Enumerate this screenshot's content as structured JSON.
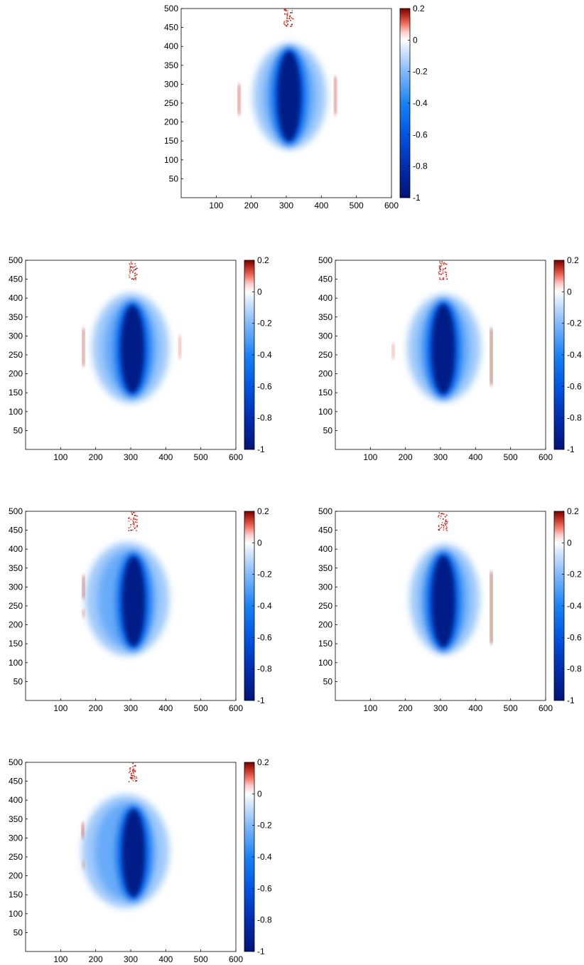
{
  "chart_data": [
    {
      "type": "heatmap",
      "panel": "top-center",
      "title": "",
      "xlabel": "",
      "ylabel": "",
      "xlim": [
        0,
        600
      ],
      "ylim": [
        0,
        500
      ],
      "x_ticks": [
        100,
        200,
        300,
        400,
        500,
        600
      ],
      "y_ticks": [
        50,
        100,
        150,
        200,
        250,
        300,
        350,
        400,
        450,
        500
      ],
      "colorbar": {
        "range": [
          -1,
          0.2
        ],
        "ticks": [
          0.2,
          0,
          -0.2,
          -0.4,
          -0.6,
          -0.8,
          -1
        ],
        "tick_labels": [
          "0.2",
          "0",
          "-0.2",
          "-0.4",
          "-0.6",
          "-0.8",
          "-1"
        ],
        "colormap": "blue-white-red"
      },
      "features": {
        "diffuse_region": {
          "x_center": 310,
          "y_center": 268,
          "x_halfwidth": 105,
          "y_halfwidth": 140,
          "value": -0.15
        },
        "core_region": {
          "x_center": 308,
          "y_center": 268,
          "x_halfwidth": 33,
          "y_halfwidth": 118,
          "value": -1
        },
        "positive_streaks": [
          {
            "x": 165,
            "y_from": 220,
            "y_to": 300,
            "value": 0.15
          },
          {
            "x": 440,
            "y_from": 220,
            "y_to": 320,
            "value": 0.15
          }
        ],
        "positive_cluster": {
          "x": 305,
          "y_from": 450,
          "y_to": 500,
          "value": 0.2
        }
      }
    },
    {
      "type": "heatmap",
      "panel": "row2-left",
      "title": "",
      "xlabel": "",
      "ylabel": "",
      "xlim": [
        0,
        600
      ],
      "ylim": [
        0,
        500
      ],
      "x_ticks": [
        100,
        200,
        300,
        400,
        500,
        600
      ],
      "y_ticks": [
        50,
        100,
        150,
        200,
        250,
        300,
        350,
        400,
        450,
        500
      ],
      "colorbar": {
        "range": [
          -1,
          0.2
        ],
        "ticks": [
          0.2,
          0,
          -0.2,
          -0.4,
          -0.6,
          -0.8,
          -1
        ],
        "tick_labels": [
          "0.2",
          "0",
          "-0.2",
          "-0.4",
          "-0.6",
          "-0.8",
          "-1"
        ],
        "colormap": "blue-white-red"
      },
      "features": {
        "diffuse_region": {
          "x_center": 300,
          "y_center": 268,
          "x_halfwidth": 110,
          "y_halfwidth": 145,
          "value": -0.15
        },
        "core_region": {
          "x_center": 305,
          "y_center": 265,
          "x_halfwidth": 33,
          "y_halfwidth": 115,
          "value": -1
        },
        "positive_streaks": [
          {
            "x": 165,
            "y_from": 220,
            "y_to": 320,
            "value": 0.15
          },
          {
            "x": 440,
            "y_from": 240,
            "y_to": 300,
            "value": 0.1
          }
        ],
        "positive_cluster": {
          "x": 305,
          "y_from": 450,
          "y_to": 500,
          "value": 0.2
        }
      }
    },
    {
      "type": "heatmap",
      "panel": "row2-right",
      "title": "",
      "xlabel": "",
      "ylabel": "",
      "xlim": [
        0,
        600
      ],
      "ylim": [
        0,
        500
      ],
      "x_ticks": [
        100,
        200,
        300,
        400,
        500,
        600
      ],
      "y_ticks": [
        50,
        100,
        150,
        200,
        250,
        300,
        350,
        400,
        450,
        500
      ],
      "colorbar": {
        "range": [
          -1,
          0.2
        ],
        "ticks": [
          0.2,
          0,
          -0.2,
          -0.4,
          -0.6,
          -0.8,
          -1
        ],
        "tick_labels": [
          "0.2",
          "0",
          "-0.2",
          "-0.4",
          "-0.6",
          "-0.8",
          "-1"
        ],
        "colormap": "blue-white-red"
      },
      "features": {
        "diffuse_region": {
          "x_center": 310,
          "y_center": 268,
          "x_halfwidth": 105,
          "y_halfwidth": 142,
          "value": -0.15
        },
        "core_region": {
          "x_center": 308,
          "y_center": 265,
          "x_halfwidth": 33,
          "y_halfwidth": 118,
          "value": -1
        },
        "positive_streaks": [
          {
            "x": 165,
            "y_from": 240,
            "y_to": 280,
            "value": 0.1
          },
          {
            "x": 445,
            "y_from": 170,
            "y_to": 320,
            "value": 0.18
          }
        ],
        "positive_cluster": {
          "x": 305,
          "y_from": 450,
          "y_to": 500,
          "value": 0.2
        }
      }
    },
    {
      "type": "heatmap",
      "panel": "row3-left",
      "title": "",
      "xlabel": "",
      "ylabel": "",
      "xlim": [
        0,
        600
      ],
      "ylim": [
        0,
        500
      ],
      "x_ticks": [
        100,
        200,
        300,
        400,
        500,
        600
      ],
      "y_ticks": [
        50,
        100,
        150,
        200,
        250,
        300,
        350,
        400,
        450,
        500
      ],
      "colorbar": {
        "range": [
          -1,
          0.2
        ],
        "ticks": [
          0.2,
          0,
          -0.2,
          -0.4,
          -0.6,
          -0.8,
          -1
        ],
        "tick_labels": [
          "0.2",
          "0",
          "-0.2",
          "-0.4",
          "-0.6",
          "-0.8",
          "-1"
        ],
        "colormap": "blue-white-red"
      },
      "features": {
        "diffuse_region": {
          "x_center": 290,
          "y_center": 268,
          "x_halfwidth": 120,
          "y_halfwidth": 150,
          "value": -0.15
        },
        "core_region": {
          "x_center": 308,
          "y_center": 262,
          "x_halfwidth": 32,
          "y_halfwidth": 118,
          "value": -1
        },
        "positive_streaks": [
          {
            "x": 165,
            "y_from": 270,
            "y_to": 330,
            "value": 0.15
          },
          {
            "x": 165,
            "y_from": 220,
            "y_to": 240,
            "value": 0.1
          }
        ],
        "positive_cluster": {
          "x": 305,
          "y_from": 450,
          "y_to": 500,
          "value": 0.2
        }
      }
    },
    {
      "type": "heatmap",
      "panel": "row3-right",
      "title": "",
      "xlabel": "",
      "ylabel": "",
      "xlim": [
        0,
        600
      ],
      "ylim": [
        0,
        500
      ],
      "x_ticks": [
        100,
        200,
        300,
        400,
        500,
        600
      ],
      "y_ticks": [
        50,
        100,
        150,
        200,
        250,
        300,
        350,
        400,
        450,
        500
      ],
      "colorbar": {
        "range": [
          -1,
          0.2
        ],
        "ticks": [
          0.2,
          0,
          -0.2,
          -0.4,
          -0.6,
          -0.8,
          -1
        ],
        "tick_labels": [
          "0.2",
          "0",
          "-0.2",
          "-0.4",
          "-0.6",
          "-0.8",
          "-1"
        ],
        "colormap": "blue-white-red"
      },
      "features": {
        "diffuse_region": {
          "x_center": 312,
          "y_center": 268,
          "x_halfwidth": 100,
          "y_halfwidth": 145,
          "value": -0.15
        },
        "core_region": {
          "x_center": 308,
          "y_center": 262,
          "x_halfwidth": 33,
          "y_halfwidth": 120,
          "value": -1
        },
        "positive_streaks": [
          {
            "x": 445,
            "y_from": 150,
            "y_to": 340,
            "value": 0.18
          }
        ],
        "positive_cluster": {
          "x": 305,
          "y_from": 450,
          "y_to": 500,
          "value": 0.2
        }
      }
    },
    {
      "type": "heatmap",
      "panel": "row4-left",
      "title": "",
      "xlabel": "",
      "ylabel": "",
      "xlim": [
        0,
        600
      ],
      "ylim": [
        0,
        500
      ],
      "x_ticks": [
        100,
        200,
        300,
        400,
        500,
        600
      ],
      "y_ticks": [
        50,
        100,
        150,
        200,
        250,
        300,
        350,
        400,
        450,
        500
      ],
      "colorbar": {
        "range": [
          -1,
          0.2
        ],
        "ticks": [
          0.2,
          0,
          -0.2,
          -0.4,
          -0.6,
          -0.8,
          -1
        ],
        "tick_labels": [
          "0.2",
          "0",
          "-0.2",
          "-0.4",
          "-0.6",
          "-0.8",
          "-1"
        ],
        "colormap": "blue-white-red"
      },
      "features": {
        "diffuse_region": {
          "x_center": 285,
          "y_center": 265,
          "x_halfwidth": 125,
          "y_halfwidth": 150,
          "value": -0.15
        },
        "core_region": {
          "x_center": 308,
          "y_center": 260,
          "x_halfwidth": 32,
          "y_halfwidth": 115,
          "value": -1
        },
        "positive_streaks": [
          {
            "x": 163,
            "y_from": 300,
            "y_to": 340,
            "value": 0.15
          },
          {
            "x": 165,
            "y_from": 220,
            "y_to": 240,
            "value": 0.1
          }
        ],
        "positive_cluster": {
          "x": 305,
          "y_from": 450,
          "y_to": 500,
          "value": 0.2
        }
      }
    }
  ]
}
